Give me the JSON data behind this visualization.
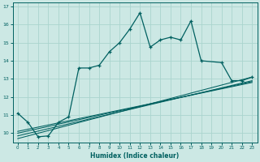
{
  "xlabel": "Humidex (Indice chaleur)",
  "background_color": "#cce8e4",
  "grid_color": "#aad4ce",
  "line_color": "#006060",
  "xlim": [
    -0.5,
    23.5
  ],
  "ylim": [
    9.5,
    17.2
  ],
  "xticks": [
    0,
    1,
    2,
    3,
    4,
    5,
    6,
    7,
    8,
    9,
    10,
    11,
    12,
    13,
    14,
    15,
    16,
    17,
    18,
    19,
    20,
    21,
    22,
    23
  ],
  "yticks": [
    10,
    11,
    12,
    13,
    14,
    15,
    16,
    17
  ],
  "main_x": [
    0,
    1,
    2,
    3,
    4,
    5,
    6,
    7,
    8,
    9,
    10,
    11,
    12,
    13,
    14,
    15,
    16,
    17,
    18,
    20,
    21,
    22,
    23
  ],
  "main_y": [
    11.1,
    10.6,
    9.8,
    9.85,
    10.6,
    10.9,
    13.6,
    13.6,
    13.75,
    14.5,
    15.0,
    15.75,
    16.65,
    14.75,
    15.15,
    15.3,
    15.15,
    16.2,
    14.0,
    13.9,
    12.9,
    12.9,
    13.1
  ],
  "linear_lines": [
    {
      "x0": 0,
      "y0": 9.7,
      "x1": 23,
      "y1": 13.1
    },
    {
      "x0": 0,
      "y0": 9.85,
      "x1": 23,
      "y1": 12.9
    },
    {
      "x0": 0,
      "y0": 10.0,
      "x1": 23,
      "y1": 12.85
    },
    {
      "x0": 0,
      "y0": 10.1,
      "x1": 23,
      "y1": 12.8
    }
  ]
}
